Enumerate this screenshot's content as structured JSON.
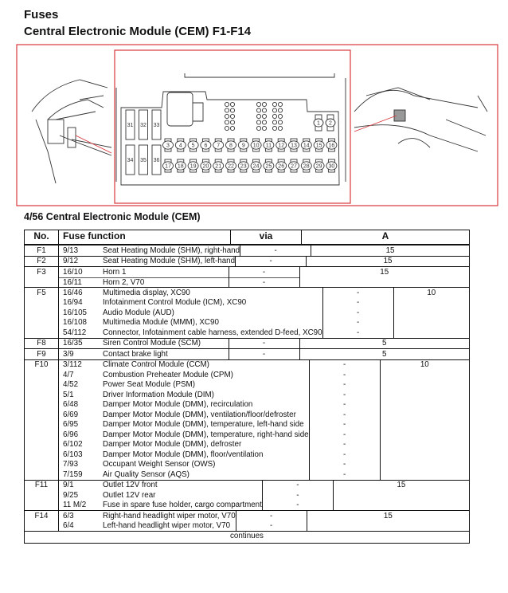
{
  "title": "Fuses",
  "subtitle": "Central Electronic Module (CEM) F1-F14",
  "section_title": "4/56 Central Electronic Module (CEM)",
  "colors": {
    "frame": "#d9383d",
    "text": "#111111"
  },
  "fusebox": {
    "left_fuses_top": [
      "31",
      "32",
      "33"
    ],
    "left_fuses_bottom": [
      "34",
      "35",
      "36"
    ],
    "row_top": [
      "3",
      "4",
      "5",
      "6",
      "7",
      "8",
      "9",
      "10",
      "11",
      "12",
      "13",
      "14",
      "15",
      "16"
    ],
    "row_bottom": [
      "17",
      "18",
      "19",
      "20",
      "21",
      "22",
      "23",
      "24",
      "25",
      "26",
      "27",
      "28",
      "29",
      "30"
    ],
    "small_fuses": [
      "1",
      "2"
    ]
  },
  "table": {
    "headers": {
      "no": "No.",
      "function": "Fuse function",
      "via": "via",
      "a": "A"
    },
    "groups": [
      {
        "no": "F1",
        "a": "15",
        "lines": [
          {
            "code": "9/13",
            "text": "Seat Heating Module (SHM), right-hand",
            "via": "-"
          }
        ]
      },
      {
        "no": "F2",
        "a": "15",
        "lines": [
          {
            "code": "9/12",
            "text": "Seat Heating Module (SHM), left-hand",
            "via": "-"
          }
        ]
      },
      {
        "no": "F3",
        "a": "15",
        "split": true,
        "lines": [
          {
            "code": "16/10",
            "text": "Horn 1",
            "via": "-"
          },
          {
            "code": "16/11",
            "text": "Horn 2, V70",
            "via": "-"
          }
        ]
      },
      {
        "no": "F5",
        "a": "10",
        "lines": [
          {
            "code": "16/46",
            "text": "Multimedia display, XC90",
            "via": "-"
          },
          {
            "code": "16/94",
            "text": "Infotainment Control Module (ICM), XC90",
            "via": "-"
          },
          {
            "code": "16/105",
            "text": "Audio Module (AUD)",
            "via": "-"
          },
          {
            "code": "16/108",
            "text": "Multimedia Module (MMM), XC90",
            "via": "-"
          },
          {
            "code": "54/112",
            "text": "Connector, Infotainment cable harness, extended D-feed, XC90",
            "via": "-"
          }
        ]
      },
      {
        "no": "F8",
        "a": "5",
        "lines": [
          {
            "code": "16/35",
            "text": "Siren Control Module (SCM)",
            "via": "-"
          }
        ]
      },
      {
        "no": "F9",
        "a": "5",
        "lines": [
          {
            "code": "3/9",
            "text": "Contact brake light",
            "via": "-"
          }
        ]
      },
      {
        "no": "F10",
        "a": "10",
        "lines": [
          {
            "code": "3/112",
            "text": "Climate Control Module (CCM)",
            "via": "-"
          },
          {
            "code": "4/7",
            "text": "Combustion Preheater Module (CPM)",
            "via": "-"
          },
          {
            "code": "4/52",
            "text": "Power Seat Module (PSM)",
            "via": "-"
          },
          {
            "code": "5/1",
            "text": "Driver Information Module (DIM)",
            "via": "-"
          },
          {
            "code": "6/48",
            "text": "Damper Motor Module (DMM), recirculation",
            "via": "-"
          },
          {
            "code": "6/69",
            "text": "Damper Motor Module (DMM), ventilation/floor/defroster",
            "via": "-"
          },
          {
            "code": "6/95",
            "text": "Damper Motor Module (DMM), temperature, left-hand side",
            "via": "-"
          },
          {
            "code": "6/96",
            "text": "Damper Motor Module (DMM), temperature, right-hand side",
            "via": "-"
          },
          {
            "code": "6/102",
            "text": "Damper Motor Module (DMM), defroster",
            "via": "-"
          },
          {
            "code": "6/103",
            "text": "Damper Motor Module (DMM), floor/ventilation",
            "via": "-"
          },
          {
            "code": "7/93",
            "text": "Occupant Weight Sensor (OWS)",
            "via": "-"
          },
          {
            "code": "7/159",
            "text": "Air Quality Sensor (AQS)",
            "via": "-"
          }
        ]
      },
      {
        "no": "F11",
        "a": "15",
        "lines": [
          {
            "code": "9/1",
            "text": "Outlet 12V front",
            "via": "-"
          },
          {
            "code": "9/25",
            "text": "Outlet 12V rear",
            "via": "-"
          },
          {
            "code": "11 M/2",
            "text": "Fuse in spare fuse holder, cargo compartment",
            "via": "-"
          }
        ]
      },
      {
        "no": "F14",
        "a": "15",
        "lines": [
          {
            "code": "6/3",
            "text": "Right-hand headlight wiper motor, V70",
            "via": "-"
          },
          {
            "code": "6/4",
            "text": "Left-hand headlight wiper motor, V70",
            "via": "-"
          }
        ]
      }
    ],
    "footer": "continues"
  }
}
